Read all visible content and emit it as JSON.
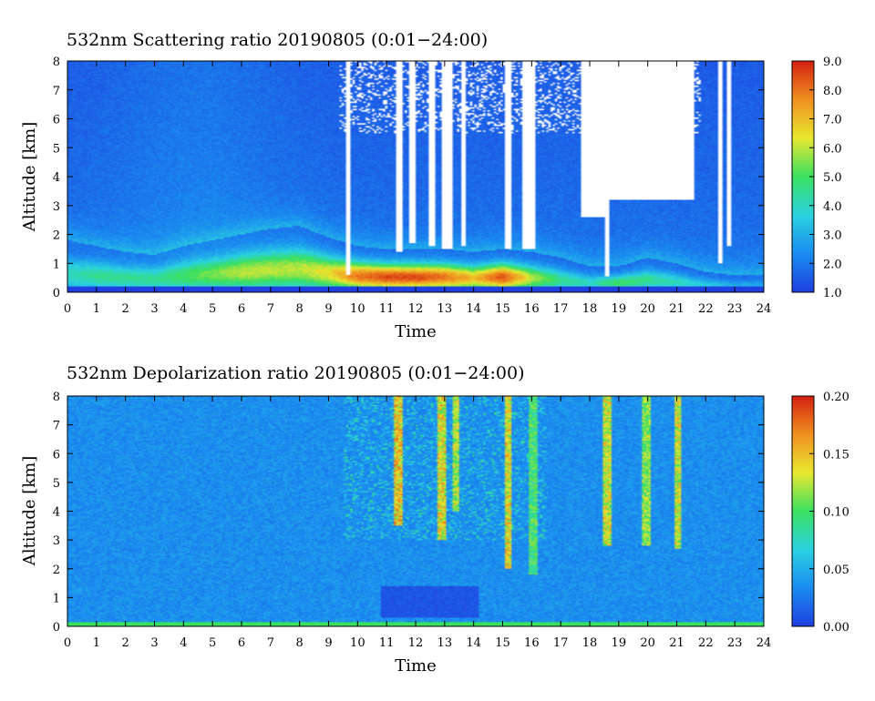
{
  "chart_data": [
    {
      "type": "heatmap",
      "title": "532nm Scattering ratio  20190805 (0:01−24:00)",
      "xlabel": "Time",
      "ylabel": "Altitude [km]",
      "xlim": [
        0,
        24
      ],
      "ylim": [
        0,
        8
      ],
      "x_ticks": [
        "0",
        "1",
        "2",
        "3",
        "4",
        "5",
        "6",
        "7",
        "8",
        "9",
        "10",
        "11",
        "12",
        "13",
        "14",
        "15",
        "16",
        "17",
        "18",
        "19",
        "20",
        "21",
        "22",
        "23",
        "24"
      ],
      "y_ticks": [
        "0",
        "1",
        "2",
        "3",
        "4",
        "5",
        "6",
        "7",
        "8"
      ],
      "colorbar": {
        "range": [
          1.0,
          9.0
        ],
        "tick_values": [
          1.0,
          2.0,
          3.0,
          4.0,
          5.0,
          6.0,
          7.0,
          8.0,
          9.0
        ],
        "tick_labels": [
          "1.0",
          "2.0",
          "3.0",
          "4.0",
          "5.0",
          "6.0",
          "7.0",
          "8.0",
          "9.0"
        ],
        "colors": [
          "#1f3fe0",
          "#1a8cf0",
          "#2ad2e0",
          "#3ae060",
          "#e8e830",
          "#f09020",
          "#d42010"
        ]
      },
      "no_data_color": "#ffffff",
      "aerosol_layer_top_km": [
        1.8,
        1.6,
        1.4,
        1.3,
        1.6,
        1.8,
        2.0,
        2.2,
        2.3,
        1.9,
        1.6,
        1.5,
        1.5,
        1.5,
        1.4,
        1.5,
        1.4,
        1.2,
        0.9,
        0.9,
        1.2,
        1.0,
        0.7,
        0.6,
        0.6
      ],
      "aerosol_layer_peak_ratio": [
        4.0,
        4.5,
        4.5,
        4.5,
        5.0,
        5.5,
        6.0,
        6.0,
        6.0,
        6.5,
        8.0,
        8.5,
        8.5,
        8.0,
        7.0,
        8.5,
        6.0,
        4.5,
        4.0,
        5.0,
        4.5,
        4.0,
        3.5,
        3.0,
        3.0
      ],
      "cloud_gaps": [
        {
          "time": [
            9.6,
            9.75
          ],
          "alt": [
            0.6,
            8
          ]
        },
        {
          "time": [
            11.3,
            11.55
          ],
          "alt": [
            1.4,
            8
          ]
        },
        {
          "time": [
            11.75,
            12.0
          ],
          "alt": [
            1.7,
            8
          ]
        },
        {
          "time": [
            12.45,
            12.65
          ],
          "alt": [
            1.6,
            8
          ]
        },
        {
          "time": [
            12.9,
            13.3
          ],
          "alt": [
            1.5,
            8
          ]
        },
        {
          "time": [
            13.55,
            13.7
          ],
          "alt": [
            1.6,
            8
          ]
        },
        {
          "time": [
            15.05,
            15.3
          ],
          "alt": [
            1.5,
            8
          ]
        },
        {
          "time": [
            15.7,
            16.1
          ],
          "alt": [
            1.5,
            8
          ]
        },
        {
          "time": [
            17.7,
            18.55
          ],
          "alt": [
            2.6,
            8
          ]
        },
        {
          "time": [
            18.55,
            18.7
          ],
          "alt": [
            0.55,
            8
          ]
        },
        {
          "time": [
            18.7,
            21.6
          ],
          "alt": [
            3.2,
            8
          ]
        },
        {
          "time": [
            22.4,
            22.55
          ],
          "alt": [
            1.0,
            8
          ]
        },
        {
          "time": [
            22.75,
            22.9
          ],
          "alt": [
            1.6,
            8
          ]
        }
      ]
    },
    {
      "type": "heatmap",
      "title": "532nm Depolarization ratio  20190805 (0:01−24:00)",
      "xlabel": "Time",
      "ylabel": "Altitude [km]",
      "xlim": [
        0,
        24
      ],
      "ylim": [
        0,
        8
      ],
      "x_ticks": [
        "0",
        "1",
        "2",
        "3",
        "4",
        "5",
        "6",
        "7",
        "8",
        "9",
        "10",
        "11",
        "12",
        "13",
        "14",
        "15",
        "16",
        "17",
        "18",
        "19",
        "20",
        "21",
        "22",
        "23",
        "24"
      ],
      "y_ticks": [
        "0",
        "1",
        "2",
        "3",
        "4",
        "5",
        "6",
        "7",
        "8"
      ],
      "colorbar": {
        "range": [
          0.0,
          0.2
        ],
        "tick_values": [
          0.0,
          0.05,
          0.1,
          0.15,
          0.2
        ],
        "tick_labels": [
          "0.00",
          "0.05",
          "0.10",
          "0.15",
          "0.20"
        ],
        "colors": [
          "#1f3fe0",
          "#1a8cf0",
          "#2ad2e0",
          "#3ae060",
          "#e8e830",
          "#f09020",
          "#d42010"
        ]
      },
      "background_ratio": 0.035,
      "surface_ratio": 0.1,
      "low_depol_band": {
        "time": [
          10.8,
          14.2
        ],
        "alt": [
          0.3,
          1.4
        ],
        "ratio": 0.0
      },
      "high_depol_columns": [
        {
          "time": 11.4,
          "alt": [
            3.5,
            8
          ],
          "ratio": 0.18
        },
        {
          "time": 12.9,
          "alt": [
            3.0,
            8
          ],
          "ratio": 0.17
        },
        {
          "time": 13.4,
          "alt": [
            4.0,
            8
          ],
          "ratio": 0.15
        },
        {
          "time": 15.2,
          "alt": [
            2.0,
            8
          ],
          "ratio": 0.17
        },
        {
          "time": 16.05,
          "alt": [
            1.8,
            8
          ],
          "ratio": 0.12
        },
        {
          "time": 18.6,
          "alt": [
            2.8,
            8
          ],
          "ratio": 0.16
        },
        {
          "time": 19.95,
          "alt": [
            2.8,
            8
          ],
          "ratio": 0.14
        },
        {
          "time": 21.05,
          "alt": [
            2.7,
            8
          ],
          "ratio": 0.16
        }
      ]
    }
  ]
}
